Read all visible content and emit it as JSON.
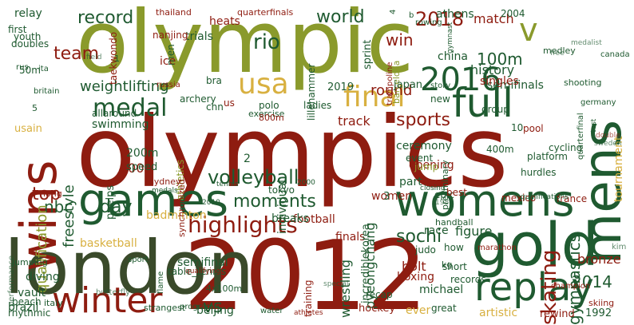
{
  "colors": {
    "dark_red": "#8e1c10",
    "red": "#b52a1c",
    "olive": "#8a9a2c",
    "dark_green": "#1f5a30",
    "dark_olive": "#3a4a2a",
    "gold": "#d8b040",
    "light_gold": "#e6c878",
    "pale_red": "#d88a78",
    "pale_green": "#88a890"
  },
  "words": [
    {
      "text": "olympics",
      "color": "dark_red"
    },
    {
      "text": "olympic",
      "color": "olive"
    },
    {
      "text": "2012",
      "color": "dark_red"
    },
    {
      "text": "london",
      "color": "dark_olive"
    },
    {
      "text": "games",
      "color": "dark_green"
    },
    {
      "text": "gold",
      "color": "dark_green"
    },
    {
      "text": "mens",
      "color": "dark_green"
    },
    {
      "text": "womens",
      "color": "dark_green"
    },
    {
      "text": "wins",
      "color": "dark_red"
    },
    {
      "text": "winter",
      "color": "dark_red"
    },
    {
      "text": "replay",
      "color": "dark_green"
    },
    {
      "text": "2016",
      "color": "dark_green"
    },
    {
      "text": "full",
      "color": "dark_green"
    },
    {
      "text": "v",
      "color": "olive"
    },
    {
      "text": "final",
      "color": "gold"
    },
    {
      "text": "usa",
      "color": "gold"
    },
    {
      "text": "highlights",
      "color": "dark_red"
    },
    {
      "text": "volleyball",
      "color": "dark_green"
    },
    {
      "text": "medal",
      "color": "dark_green"
    },
    {
      "text": "rio",
      "color": "dark_green"
    },
    {
      "text": "team",
      "color": "dark_red"
    },
    {
      "text": "world",
      "color": "dark_green"
    },
    {
      "text": "record",
      "color": "dark_green"
    },
    {
      "text": "win",
      "color": "dark_red"
    },
    {
      "text": "2018",
      "color": "dark_red"
    },
    {
      "text": "100m",
      "color": "dark_green"
    },
    {
      "text": "sports",
      "color": "dark_red"
    },
    {
      "text": "sochi",
      "color": "dark_green"
    },
    {
      "text": "skating",
      "color": "dark_red"
    },
    {
      "text": "gymnastics",
      "color": "dark_green"
    },
    {
      "text": "2014",
      "color": "dark_green"
    },
    {
      "text": "moments",
      "color": "dark_green"
    },
    {
      "text": "day",
      "color": "dark_green"
    },
    {
      "text": "top",
      "color": "dark_red"
    },
    {
      "text": "nbc",
      "color": "dark_green"
    },
    {
      "text": "qualification",
      "color": "olive"
    },
    {
      "text": "freestyle",
      "color": "dark_green"
    },
    {
      "text": "weightlifting",
      "color": "dark_green"
    },
    {
      "text": "vs",
      "color": "dark_green"
    },
    {
      "text": "tournament",
      "color": "gold"
    },
    {
      "text": "history",
      "color": "dark_green"
    },
    {
      "text": "semifinals",
      "color": "dark_green"
    },
    {
      "text": "round",
      "color": "dark_red"
    },
    {
      "text": "swimming",
      "color": "dark_green"
    },
    {
      "text": "badminton",
      "color": "gold"
    },
    {
      "text": "basketball",
      "color": "gold"
    },
    {
      "text": "semifinal",
      "color": "dark_green"
    },
    {
      "text": "figure",
      "color": "dark_green"
    },
    {
      "text": "race",
      "color": "dark_green"
    },
    {
      "text": "finals",
      "color": "dark_red"
    },
    {
      "text": "football",
      "color": "dark_red"
    },
    {
      "text": "bronze",
      "color": "dark_red"
    },
    {
      "text": "bolt",
      "color": "dark_red"
    },
    {
      "text": "boxing",
      "color": "dark_red"
    },
    {
      "text": "part",
      "color": "dark_green"
    },
    {
      "text": "opening",
      "color": "dark_red"
    },
    {
      "text": "ceremony",
      "color": "dark_green"
    },
    {
      "text": "pyeongchang",
      "color": "dark_green"
    },
    {
      "text": "wrestling",
      "color": "dark_green"
    },
    {
      "text": "incrediblekorea",
      "color": "dark_green"
    },
    {
      "text": "individual",
      "color": "dark_green"
    },
    {
      "text": "breaks",
      "color": "dark_green"
    },
    {
      "text": "2008",
      "color": "dark_red"
    },
    {
      "text": "200m",
      "color": "dark_green"
    },
    {
      "text": "speed",
      "color": "dark_green"
    },
    {
      "text": "phelps",
      "color": "dark_green"
    },
    {
      "text": "athletics",
      "color": "olive"
    },
    {
      "text": "tokyo",
      "color": "dark_green"
    },
    {
      "text": "table_tennis",
      "color": "dark_green"
    },
    {
      "text": "beijing",
      "color": "dark_green"
    },
    {
      "text": "4x100m",
      "color": "dark_green"
    },
    {
      "text": "training",
      "color": "dark_red"
    },
    {
      "text": "recap",
      "color": "dark_green"
    },
    {
      "text": "hockey",
      "color": "dark_red"
    },
    {
      "text": "michael",
      "color": "dark_green"
    },
    {
      "text": "records",
      "color": "dark_green"
    },
    {
      "text": "ever",
      "color": "gold"
    },
    {
      "text": "artistic",
      "color": "gold"
    },
    {
      "text": "rewind",
      "color": "dark_red"
    },
    {
      "text": "1992",
      "color": "dark_green"
    },
    {
      "text": "skiing",
      "color": "dark_red"
    },
    {
      "text": "diving",
      "color": "dark_green"
    },
    {
      "text": "vault",
      "color": "dark_green"
    },
    {
      "text": "beach",
      "color": "dark_green"
    },
    {
      "text": "brazil",
      "color": "dark_green"
    },
    {
      "text": "italy",
      "color": "dark_green"
    },
    {
      "text": "rhythmic",
      "color": "dark_green"
    },
    {
      "text": "relay",
      "color": "dark_green"
    },
    {
      "text": "youth",
      "color": "dark_green"
    },
    {
      "text": "first",
      "color": "dark_green"
    },
    {
      "text": "doubles",
      "color": "dark_green"
    },
    {
      "text": "trials",
      "color": "dark_green"
    },
    {
      "text": "heats",
      "color": "dark_red"
    },
    {
      "text": "taekwondo",
      "color": "dark_red"
    },
    {
      "text": "nanjing",
      "color": "dark_red"
    },
    {
      "text": "lillehammer",
      "color": "dark_green"
    },
    {
      "text": "athens",
      "color": "dark_green"
    },
    {
      "text": "match",
      "color": "dark_red"
    },
    {
      "text": "china",
      "color": "dark_green"
    },
    {
      "text": "sprint",
      "color": "dark_green"
    },
    {
      "text": "barcelona",
      "color": "olive"
    },
    {
      "text": "singles",
      "color": "dark_red"
    },
    {
      "text": "group",
      "color": "dark_green"
    },
    {
      "text": "event",
      "color": "dark_green"
    },
    {
      "text": "jump",
      "color": "olive"
    },
    {
      "text": "preliminary",
      "color": "dark_green"
    },
    {
      "text": "judo",
      "color": "dark_green"
    },
    {
      "text": "400m",
      "color": "dark_green"
    },
    {
      "text": "cycling",
      "color": "dark_green"
    },
    {
      "text": "hurdles",
      "color": "dark_green"
    },
    {
      "text": "mexico",
      "color": "dark_red"
    },
    {
      "text": "france",
      "color": "dark_red"
    },
    {
      "text": "marathon",
      "color": "dark_red"
    },
    {
      "text": "10",
      "color": "dark_green"
    },
    {
      "text": "ice",
      "color": "dark_red"
    },
    {
      "text": "men",
      "color": "dark_green"
    },
    {
      "text": "bra",
      "color": "dark_green"
    },
    {
      "text": "chn",
      "color": "dark_green"
    },
    {
      "text": "polo",
      "color": "dark_green"
    },
    {
      "text": "ladies",
      "color": "dark_green"
    },
    {
      "text": "archery",
      "color": "dark_green"
    },
    {
      "text": "2019",
      "color": "dark_green"
    },
    {
      "text": "us",
      "color": "dark_red"
    },
    {
      "text": "japan",
      "color": "dark_green"
    },
    {
      "text": "story",
      "color": "dark_green"
    },
    {
      "text": "track",
      "color": "dark_red"
    },
    {
      "text": "new",
      "color": "dark_green"
    },
    {
      "text": "usain",
      "color": "gold"
    },
    {
      "text": "exercise",
      "color": "dark_green"
    },
    {
      "text": "800m",
      "color": "dark_red"
    },
    {
      "text": "women",
      "color": "dark_red"
    },
    {
      "text": "epic",
      "color": "dark_green"
    },
    {
      "text": "best",
      "color": "dark_red"
    },
    {
      "text": "pool",
      "color": "dark_red"
    },
    {
      "text": "platform",
      "color": "dark_green"
    },
    {
      "text": "handball",
      "color": "dark_green"
    },
    {
      "text": "how",
      "color": "dark_green"
    },
    {
      "text": "short",
      "color": "dark_green"
    },
    {
      "text": "great",
      "color": "dark_green"
    },
    {
      "text": "champion",
      "color": "dark_red"
    },
    {
      "text": "kg",
      "color": "dark_green"
    },
    {
      "text": "flame",
      "color": "dark_green"
    },
    {
      "text": "strangest",
      "color": "dark_green"
    },
    {
      "text": "sport",
      "color": "dark_green"
    },
    {
      "text": "jumping",
      "color": "dark_green"
    },
    {
      "text": "long",
      "color": "dark_red"
    },
    {
      "text": "sydney",
      "color": "dark_red"
    },
    {
      "text": "synchronized",
      "color": "dark_red"
    },
    {
      "text": "medley",
      "color": "dark_green"
    },
    {
      "text": "free",
      "color": "dark_green"
    },
    {
      "text": "rowing",
      "color": "dark_green"
    },
    {
      "text": "water",
      "color": "dark_green"
    },
    {
      "text": "program",
      "color": "dark_green"
    },
    {
      "text": "performance",
      "color": "dark_green"
    },
    {
      "text": "butterfly",
      "color": "dark_green"
    },
    {
      "text": "kim",
      "color": "dark_green"
    },
    {
      "text": "canada",
      "color": "dark_green"
    },
    {
      "text": "sweden",
      "color": "dark_green"
    },
    {
      "text": "germany",
      "color": "dark_green"
    },
    {
      "text": "medalist",
      "color": "dark_green"
    },
    {
      "text": "thailand",
      "color": "dark_red"
    },
    {
      "text": "quarterfinals",
      "color": "dark_red"
    },
    {
      "text": "quarterfinal",
      "color": "dark_green"
    },
    {
      "text": "trampoline",
      "color": "dark_red"
    },
    {
      "text": "shooting",
      "color": "dark_green"
    },
    {
      "text": "2004",
      "color": "dark_green"
    },
    {
      "text": "2010",
      "color": "dark_green"
    },
    {
      "text": "2000",
      "color": "dark_green"
    },
    {
      "text": "1988",
      "color": "dark_green"
    },
    {
      "text": "3",
      "color": "dark_green"
    },
    {
      "text": "2",
      "color": "dark_green"
    },
    {
      "text": "5",
      "color": "dark_green"
    },
    {
      "text": "4",
      "color": "dark_green"
    },
    {
      "text": "1",
      "color": "dark_green"
    },
    {
      "text": "b",
      "color": "dark_green"
    },
    {
      "text": "50m",
      "color": "dark_green"
    },
    {
      "text": "allaround",
      "color": "dark_green"
    },
    {
      "text": "britain",
      "color": "dark_green"
    },
    {
      "text": "russia",
      "color": "dark_red"
    },
    {
      "text": "medals",
      "color": "dark_green"
    },
    {
      "text": "field",
      "color": "dark_green"
    },
    {
      "text": "closing",
      "color": "dark_green"
    },
    {
      "text": "qualifying",
      "color": "dark_red"
    },
    {
      "text": "tennis",
      "color": "dark_green"
    },
    {
      "text": "special",
      "color": "dark_green"
    },
    {
      "text": "athletes",
      "color": "dark_red"
    },
    {
      "text": "test",
      "color": "dark_green"
    },
    {
      "text": "double",
      "color": "dark_red"
    },
    {
      "text": "qualifications",
      "color": "dark_green"
    },
    {
      "text": "ita",
      "color": "dark_green"
    },
    {
      "text": "rus",
      "color": "dark_green"
    },
    {
      "text": "gymnast",
      "color": "dark_green"
    }
  ]
}
